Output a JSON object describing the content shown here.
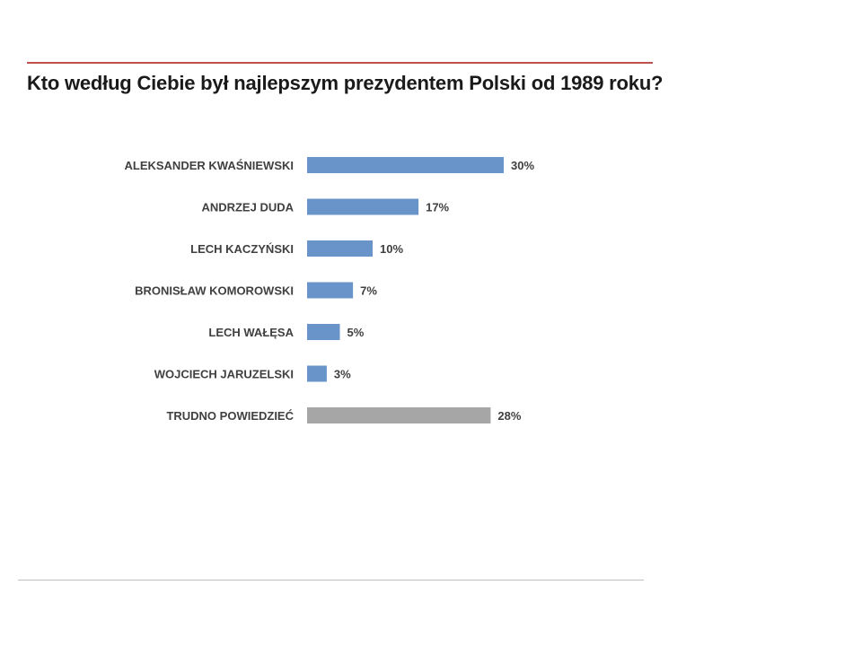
{
  "slide": {
    "title": "Kto według Ciebie był najlepszym prezydentem Polski od 1989 roku?"
  },
  "colors": {
    "accent_rule": "#c0504d",
    "bar_primary": "#6894c9",
    "bar_secondary": "#a6a6a6",
    "text": "#404040"
  },
  "chart_data": {
    "type": "bar",
    "orientation": "horizontal",
    "title": "Kto według Ciebie był najlepszym prezydentem Polski od 1989 roku?",
    "categories": [
      "ALEKSANDER KWAŚNIEWSKI",
      "ANDRZEJ DUDA",
      "LECH KACZYŃSKI",
      "BRONISŁAW KOMOROWSKI",
      "LECH WAŁĘSA",
      "WOJCIECH JARUZELSKI",
      "TRUDNO POWIEDZIEĆ"
    ],
    "values": [
      30,
      17,
      10,
      7,
      5,
      3,
      28
    ],
    "value_labels": [
      "30%",
      "17%",
      "10%",
      "7%",
      "5%",
      "3%",
      "28%"
    ],
    "unit": "%",
    "bar_colors": [
      "#6894c9",
      "#6894c9",
      "#6894c9",
      "#6894c9",
      "#6894c9",
      "#6894c9",
      "#a6a6a6"
    ],
    "xlim": [
      0,
      30
    ],
    "grid": false,
    "legend": "none"
  }
}
